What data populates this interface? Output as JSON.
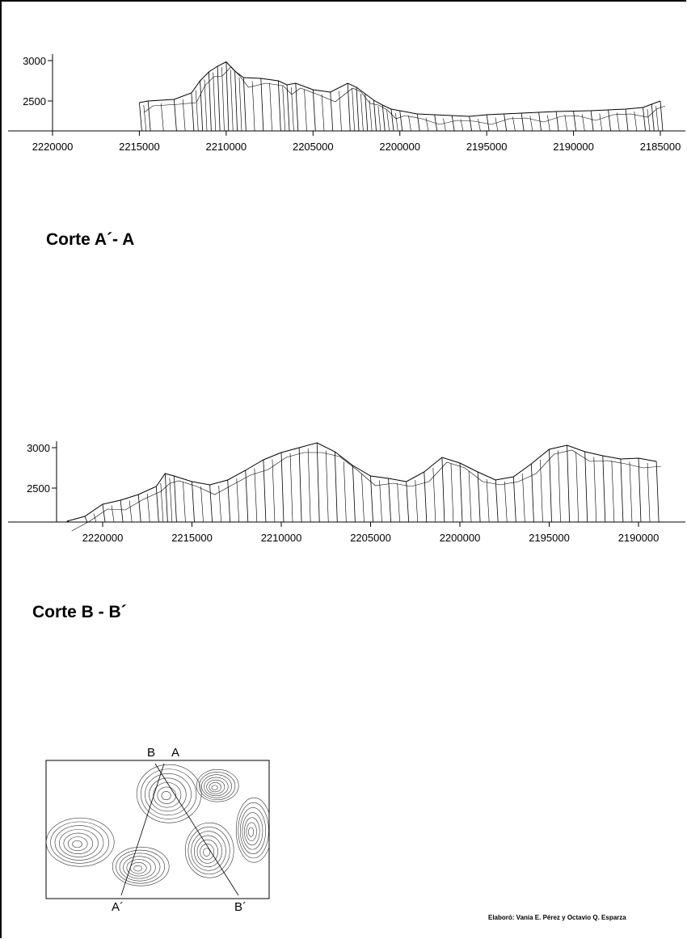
{
  "credit": "Elaboró: Vania E. Pérez y Octavio Q. Esparza",
  "sections": [
    {
      "title": "Corte A´- A",
      "start_label": "",
      "end_label": ""
    },
    {
      "title": "Corte B - B´",
      "start_label": "",
      "end_label": ""
    }
  ],
  "locator_map": {
    "labels": [
      "B",
      "A",
      "A´",
      "B´"
    ]
  },
  "chart_data": [
    {
      "type": "line",
      "title": "Corte A´- A",
      "xlabel": "",
      "ylabel": "",
      "x_reversed": true,
      "xlim": [
        2220000,
        2185000
      ],
      "ylim": [
        2200,
        3000
      ],
      "xticks": [
        2220000,
        2215000,
        2210000,
        2205000,
        2200000,
        2195000,
        2190000,
        2185000
      ],
      "xtick_labels": [
        "2220000",
        "2215000",
        "2210000",
        "2205000",
        "2200000",
        "2195000",
        "2190000",
        "2185000"
      ],
      "yticks": [
        2500,
        3000
      ],
      "ytick_labels": [
        "2500",
        "3000"
      ],
      "grid": false,
      "series": [
        {
          "x": [
            2215000,
            2214500,
            2213000,
            2212000,
            2211500,
            2211000,
            2210500,
            2210000,
            2209500,
            2209000,
            2208000,
            2207000,
            2206500,
            2206000,
            2205000,
            2204000,
            2203000,
            2202500,
            2202000,
            2201500,
            2201000,
            2200500,
            2200000,
            2199000,
            2198000,
            2197000,
            2196000,
            2195000,
            2194000,
            2193000,
            2192000,
            2191000,
            2190000,
            2189000,
            2188000,
            2187000,
            2186000,
            2185500,
            2185000
          ],
          "y": [
            2480,
            2500,
            2520,
            2600,
            2750,
            2860,
            2930,
            2985,
            2870,
            2790,
            2780,
            2750,
            2700,
            2720,
            2640,
            2610,
            2720,
            2670,
            2590,
            2510,
            2450,
            2400,
            2380,
            2340,
            2330,
            2320,
            2310,
            2330,
            2340,
            2350,
            2360,
            2370,
            2375,
            2380,
            2390,
            2400,
            2420,
            2460,
            2500
          ]
        }
      ]
    },
    {
      "type": "line",
      "title": "Corte B - B´",
      "xlabel": "",
      "ylabel": "",
      "x_reversed": true,
      "xlim": [
        2223000,
        2188000
      ],
      "ylim": [
        2090,
        3000
      ],
      "xticks": [
        2220000,
        2215000,
        2210000,
        2205000,
        2200000,
        2195000,
        2190000
      ],
      "xtick_labels": [
        "2220000",
        "2215000",
        "2210000",
        "2205000",
        "2200000",
        "2195000",
        "2190000"
      ],
      "yticks": [
        2500,
        3000
      ],
      "ytick_labels": [
        "2500",
        "3000"
      ],
      "grid": false,
      "series": [
        {
          "x": [
            2222000,
            2221000,
            2220000,
            2219000,
            2218000,
            2217000,
            2216500,
            2216000,
            2215000,
            2214000,
            2213000,
            2212000,
            2211000,
            2210000,
            2209000,
            2208000,
            2207000,
            2206000,
            2205000,
            2204000,
            2203000,
            2202000,
            2201000,
            2200000,
            2199000,
            2198000,
            2197000,
            2196000,
            2195000,
            2194000,
            2193000,
            2192000,
            2191000,
            2190000,
            2189000
          ],
          "y": [
            2090,
            2150,
            2300,
            2350,
            2420,
            2520,
            2680,
            2650,
            2580,
            2540,
            2600,
            2720,
            2850,
            2940,
            3000,
            3060,
            2950,
            2780,
            2650,
            2620,
            2580,
            2700,
            2880,
            2810,
            2700,
            2600,
            2640,
            2800,
            2980,
            3030,
            2950,
            2900,
            2860,
            2870,
            2830
          ]
        }
      ]
    }
  ]
}
